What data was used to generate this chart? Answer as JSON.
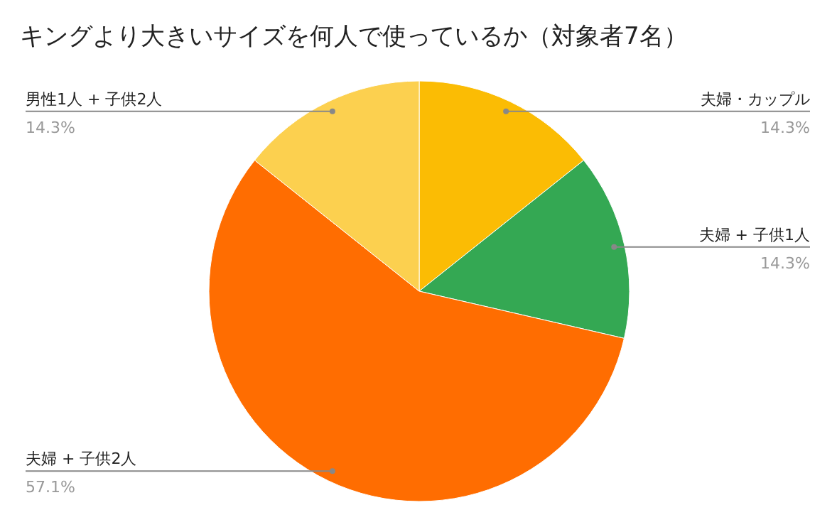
{
  "chart_data": {
    "type": "pie",
    "title": "キングより大きいサイズを何人で使っているか（対象者7名）",
    "categories": [
      "夫婦・カップル",
      "夫婦 + 子供1人",
      "夫婦 + 子供2人",
      "男性1人 + 子供2人"
    ],
    "values": [
      14.3,
      14.3,
      57.1,
      14.3
    ],
    "colors": [
      "#fbbc04",
      "#34a853",
      "#ff6d01",
      "#fcd04f"
    ],
    "value_labels": [
      "14.3%",
      "14.3%",
      "57.1%",
      "14.3%"
    ]
  }
}
